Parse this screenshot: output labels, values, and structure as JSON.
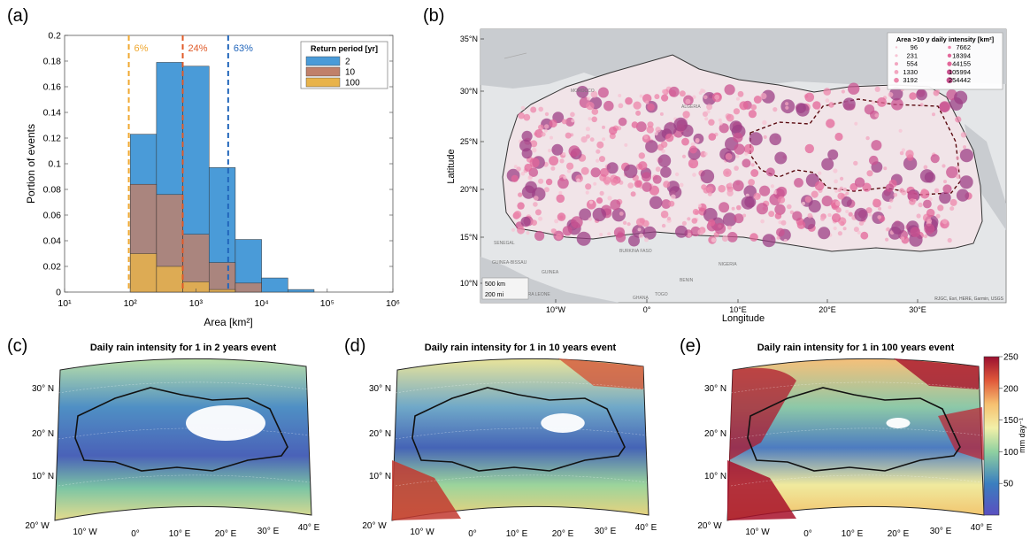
{
  "panel_labels": [
    "(a)",
    "(b)",
    "(c)",
    "(d)",
    "(e)"
  ],
  "colors": {
    "rp2": "#4a9bd8",
    "rp10": "#c0806a",
    "rp100": "#e8b34a",
    "line6": "#f0a830",
    "line24": "#e05a28",
    "line63": "#2266bb"
  },
  "chart_data": [
    {
      "type": "bar",
      "panel": "(a)",
      "xlabel": "Area [km²]",
      "ylabel": "Portion of events",
      "xscale": "log",
      "xlim": [
        10,
        1000000
      ],
      "ylim": [
        0,
        0.2
      ],
      "grid": false,
      "legend_placement": "top-right",
      "x_ticks": [
        "10¹",
        "10²",
        "10³",
        "10⁴",
        "10⁵",
        "10⁶"
      ],
      "y_ticks": [
        "0",
        "0.02",
        "0.04",
        "0.06",
        "0.08",
        "0.1",
        "0.12",
        "0.14",
        "0.16",
        "0.18",
        "0.2"
      ],
      "bin_edges": [
        100,
        251,
        631,
        1585,
        3981,
        10000,
        25119,
        63096,
        158489,
        398107
      ],
      "legend_title": "Return period [yr]",
      "series": [
        {
          "name": "2",
          "color": "#4a9bd8",
          "values": [
            0.123,
            0.179,
            0.176,
            0.097,
            0.041,
            0.011,
            0.002,
            0.0,
            0.0
          ]
        },
        {
          "name": "10",
          "color": "#c0806a",
          "values": [
            0.084,
            0.076,
            0.045,
            0.023,
            0.007,
            0.0,
            0.0,
            0.0,
            0.0
          ]
        },
        {
          "name": "100",
          "color": "#e8b34a",
          "values": [
            0.03,
            0.02,
            0.008,
            0.002,
            0.0,
            0.0,
            0.0,
            0.0,
            0.0
          ]
        }
      ],
      "vlines": [
        {
          "x": 95,
          "label": "6%",
          "color": "#f0a830"
        },
        {
          "x": 630,
          "label": "24%",
          "color": "#e05a28"
        },
        {
          "x": 3100,
          "label": "63%",
          "color": "#2266bb"
        }
      ]
    },
    {
      "type": "scatter",
      "panel": "(b)",
      "xlabel": "Longitude",
      "ylabel": "Latitude",
      "x_ticks": [
        "10°W",
        "0°",
        "10°E",
        "20°E",
        "30°E"
      ],
      "y_ticks": [
        "10°N",
        "15°N",
        "20°N",
        "25°N",
        "30°N",
        "35°N"
      ],
      "legend_title": "Area >10 y daily intensity [km²]",
      "legend_placement": "top-right",
      "legend_values": [
        "96",
        "231",
        "554",
        "1330",
        "3192",
        "7662",
        "18394",
        "44155",
        "105994",
        "254442"
      ],
      "scale_labels": [
        "500 km",
        "200 mi"
      ],
      "attribution": "RJGC, Esri, HERE, Garmin, USGS",
      "country_labels": [
        "MOROCCO",
        "ALGERIA",
        "SENEGAL",
        "GUINEA-BISSAU",
        "GUINEA",
        "SIERRA LEONE",
        "BURKINA FASO",
        "BENIN",
        "TOGO",
        "GHANA",
        "NIGERIA"
      ]
    }
  ],
  "maps": [
    {
      "panel": "(c)",
      "title": "Daily rain intensity for 1 in 2 years event"
    },
    {
      "panel": "(d)",
      "title": "Daily rain intensity for 1 in 10 years event"
    },
    {
      "panel": "(e)",
      "title": "Daily rain intensity for 1 in 100 years event"
    }
  ],
  "map_lat_labels": [
    "30° N",
    "20° N",
    "10° N"
  ],
  "map_lon_labels": [
    "20° W",
    "10° W",
    "0°",
    "10° E",
    "20° E",
    "30° E",
    "40° E"
  ],
  "colorbar": {
    "label": "mm day⁻¹",
    "ticks": [
      "250",
      "200",
      "150",
      "100",
      "50"
    ],
    "range": [
      0,
      250
    ]
  }
}
